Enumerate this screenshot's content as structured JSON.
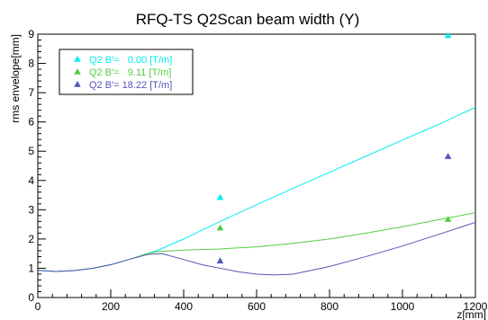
{
  "chart_data": {
    "type": "scatter",
    "title": "RFQ-TS Q2Scan beam width (Y)",
    "xlabel": "z[mm]",
    "ylabel": "rms envelope[mm]",
    "xlim": [
      0,
      1200
    ],
    "ylim": [
      0,
      9
    ],
    "x_ticks": [
      "0",
      "200",
      "400",
      "600",
      "800",
      "1000",
      "1200"
    ],
    "y_ticks": [
      "0",
      "1",
      "2",
      "3",
      "4",
      "5",
      "6",
      "7",
      "8",
      "9"
    ],
    "grid": false,
    "legend_placement": "top-left",
    "series": [
      {
        "name": "Q2 B'=   0.00 [T/m]",
        "color": "#00eeee",
        "marker": "triangle",
        "points": [
          [
            500,
            3.42
          ],
          [
            1125,
            8.95
          ]
        ],
        "curve": [
          [
            0,
            0.93
          ],
          [
            50,
            0.89
          ],
          [
            100,
            0.92
          ],
          [
            150,
            1.0
          ],
          [
            200,
            1.12
          ],
          [
            250,
            1.3
          ],
          [
            300,
            1.5
          ],
          [
            330,
            1.62
          ],
          [
            400,
            2.0
          ],
          [
            500,
            2.6
          ],
          [
            600,
            3.17
          ],
          [
            700,
            3.73
          ],
          [
            800,
            4.28
          ],
          [
            900,
            4.83
          ],
          [
            1000,
            5.38
          ],
          [
            1100,
            5.92
          ],
          [
            1200,
            6.5
          ]
        ]
      },
      {
        "name": "Q2 B'=   9.11 [T/m]",
        "color": "#55cc44",
        "marker": "triangle",
        "points": [
          [
            500,
            2.38
          ],
          [
            1125,
            2.67
          ]
        ],
        "curve": [
          [
            0,
            0.93
          ],
          [
            50,
            0.89
          ],
          [
            100,
            0.92
          ],
          [
            150,
            1.0
          ],
          [
            200,
            1.12
          ],
          [
            250,
            1.3
          ],
          [
            300,
            1.5
          ],
          [
            330,
            1.57
          ],
          [
            400,
            1.62
          ],
          [
            500,
            1.66
          ],
          [
            600,
            1.73
          ],
          [
            700,
            1.85
          ],
          [
            800,
            2.0
          ],
          [
            900,
            2.2
          ],
          [
            1000,
            2.42
          ],
          [
            1100,
            2.66
          ],
          [
            1200,
            2.9
          ]
        ]
      },
      {
        "name": "Q2 B'= 18.22 [T/m]",
        "color": "#5555bb",
        "marker": "triangle",
        "points": [
          [
            500,
            1.25
          ],
          [
            1125,
            4.82
          ]
        ],
        "curve": [
          [
            0,
            0.93
          ],
          [
            50,
            0.89
          ],
          [
            100,
            0.92
          ],
          [
            150,
            1.0
          ],
          [
            200,
            1.12
          ],
          [
            250,
            1.3
          ],
          [
            300,
            1.47
          ],
          [
            340,
            1.5
          ],
          [
            400,
            1.3
          ],
          [
            450,
            1.12
          ],
          [
            500,
            1.0
          ],
          [
            550,
            0.88
          ],
          [
            600,
            0.8
          ],
          [
            650,
            0.77
          ],
          [
            700,
            0.8
          ],
          [
            800,
            1.06
          ],
          [
            900,
            1.4
          ],
          [
            1000,
            1.76
          ],
          [
            1100,
            2.16
          ],
          [
            1200,
            2.57
          ]
        ]
      }
    ]
  }
}
